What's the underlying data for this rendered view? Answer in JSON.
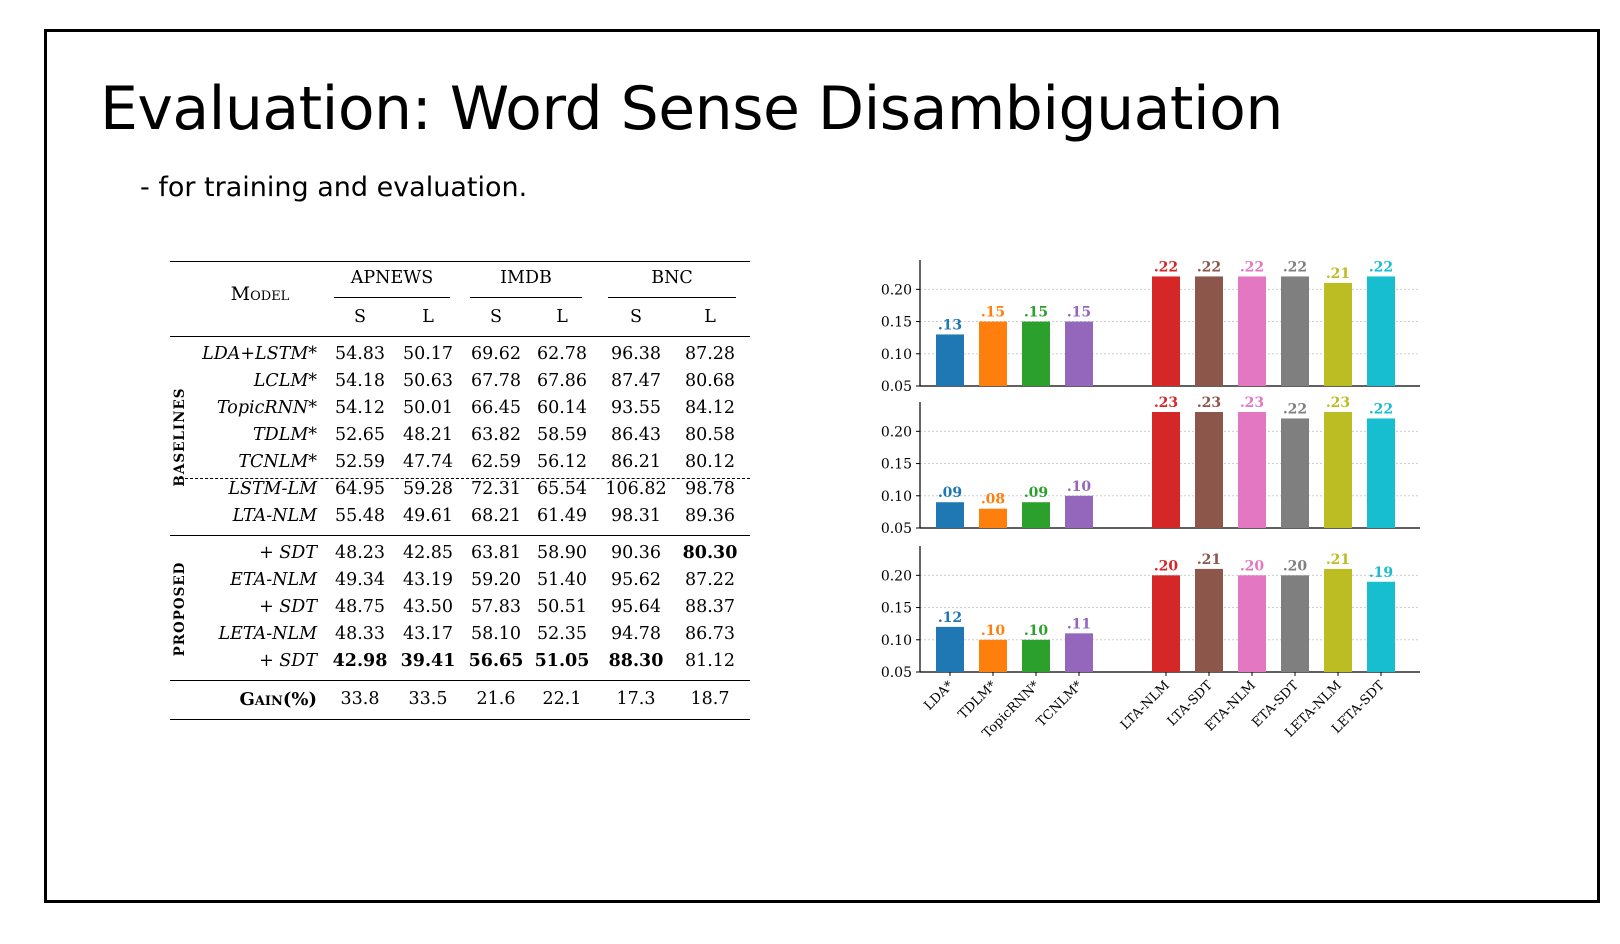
{
  "slide": {
    "title": "Evaluation: Word Sense Disambiguation",
    "subtitle": "- for training and evaluation."
  },
  "table": {
    "model_header": "Model",
    "groups": [
      "APNEWS",
      "IMDB",
      "BNC"
    ],
    "sub_headers": [
      "S",
      "L",
      "S",
      "L",
      "S",
      "L"
    ],
    "sections": [
      {
        "label": "BASELINES",
        "rows": [
          {
            "model": "LDA+LSTM*",
            "values": [
              "54.83",
              "50.17",
              "69.62",
              "62.78",
              "96.38",
              "87.28"
            ],
            "bold": []
          },
          {
            "model": "LCLM*",
            "values": [
              "54.18",
              "50.63",
              "67.78",
              "67.86",
              "87.47",
              "80.68"
            ],
            "bold": []
          },
          {
            "model": "TopicRNN*",
            "values": [
              "54.12",
              "50.01",
              "66.45",
              "60.14",
              "93.55",
              "84.12"
            ],
            "bold": []
          },
          {
            "model": "TDLM*",
            "values": [
              "52.65",
              "48.21",
              "63.82",
              "58.59",
              "86.43",
              "80.58"
            ],
            "bold": []
          },
          {
            "model": "TCNLM*",
            "values": [
              "52.59",
              "47.74",
              "62.59",
              "56.12",
              "86.21",
              "80.12"
            ],
            "bold": []
          },
          {
            "model": "LSTM-LM",
            "values": [
              "64.95",
              "59.28",
              "72.31",
              "65.54",
              "106.82",
              "98.78"
            ],
            "bold": []
          },
          {
            "model": "LTA-NLM",
            "values": [
              "55.48",
              "49.61",
              "68.21",
              "61.49",
              "98.31",
              "89.36"
            ],
            "bold": []
          }
        ]
      },
      {
        "label": "PROPOSED",
        "rows": [
          {
            "model": "+ SDT",
            "values": [
              "48.23",
              "42.85",
              "63.81",
              "58.90",
              "90.36",
              "80.30"
            ],
            "bold": [
              5
            ]
          },
          {
            "model": "ETA-NLM",
            "values": [
              "49.34",
              "43.19",
              "59.20",
              "51.40",
              "95.62",
              "87.22"
            ],
            "bold": []
          },
          {
            "model": "+ SDT",
            "values": [
              "48.75",
              "43.50",
              "57.83",
              "50.51",
              "95.64",
              "88.37"
            ],
            "bold": []
          },
          {
            "model": "LETA-NLM",
            "values": [
              "48.33",
              "43.17",
              "58.10",
              "52.35",
              "94.78",
              "86.73"
            ],
            "bold": []
          },
          {
            "model": "+ SDT",
            "values": [
              "42.98",
              "39.41",
              "56.65",
              "51.05",
              "88.30",
              "81.12"
            ],
            "bold": [
              0,
              1,
              2,
              3,
              4
            ]
          }
        ]
      }
    ],
    "gain_label": "Gain(%)",
    "gain_values": [
      "33.8",
      "33.5",
      "21.6",
      "22.1",
      "17.3",
      "18.7"
    ]
  },
  "chart_data": {
    "type": "bar",
    "categories": [
      "LDA*",
      "TDLM*",
      "TopicRNN*",
      "TCNLM*",
      "LTA-NLM",
      "LTA-SDT",
      "ETA-NLM",
      "ETA-SDT",
      "LETA-NLM",
      "LETA-SDT"
    ],
    "colors": [
      "#1f77b4",
      "#ff7f0e",
      "#2ca02c",
      "#9467bd",
      "#d62728",
      "#8c564b",
      "#e377c2",
      "#7f7f7f",
      "#bcbd22",
      "#17becf"
    ],
    "ylim": [
      0.05,
      0.23
    ],
    "yticks": [
      "0.05",
      "0.10",
      "0.15",
      "0.20"
    ],
    "grid": true,
    "panels": [
      {
        "values": [
          0.13,
          0.15,
          0.15,
          0.15,
          0.22,
          0.22,
          0.22,
          0.22,
          0.21,
          0.22
        ],
        "labels": [
          ".13",
          ".15",
          ".15",
          ".15",
          ".22",
          ".22",
          ".22",
          ".22",
          ".21",
          ".22"
        ]
      },
      {
        "values": [
          0.09,
          0.08,
          0.09,
          0.1,
          0.23,
          0.23,
          0.23,
          0.22,
          0.23,
          0.22
        ],
        "labels": [
          ".09",
          ".08",
          ".09",
          ".10",
          ".23",
          ".23",
          ".23",
          ".22",
          ".23",
          ".22"
        ]
      },
      {
        "values": [
          0.12,
          0.1,
          0.1,
          0.11,
          0.2,
          0.21,
          0.2,
          0.2,
          0.21,
          0.19
        ],
        "labels": [
          ".12",
          ".10",
          ".10",
          ".11",
          ".20",
          ".21",
          ".20",
          ".20",
          ".21",
          ".19"
        ]
      }
    ]
  }
}
